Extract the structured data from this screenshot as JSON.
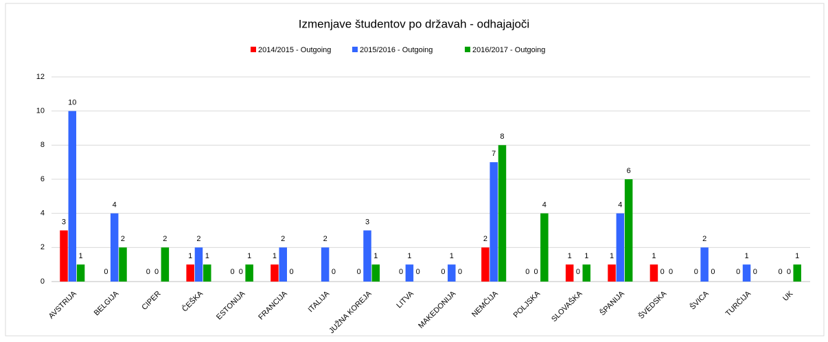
{
  "chart_data": {
    "type": "bar",
    "title": "Izmenjave študentov po državah - odhajajoči",
    "categories": [
      "AVSTRIJA",
      "BELGIJA",
      "CIPER",
      "ČEŠKA",
      "ESTONIJA",
      "FRANCIJA",
      "ITALIJA",
      "JUŽNA KOREJA",
      "LITVA",
      "MAKEDONIJA",
      "NEMČIJA",
      "POLJSKA",
      "SLOVAŠKA",
      "ŠPANIJA",
      "ŠVEDSKA",
      "ŠVICA",
      "TURČIJA",
      "UK"
    ],
    "series": [
      {
        "name": "2014/2015 - Outgoing",
        "color": "#ff0000",
        "values": [
          3,
          0,
          0,
          1,
          0,
          1,
          null,
          0,
          0,
          0,
          2,
          0,
          1,
          1,
          1,
          0,
          0,
          0
        ]
      },
      {
        "name": "2015/2016 - Outgoing",
        "color": "#3366ff",
        "values": [
          10,
          4,
          0,
          2,
          0,
          2,
          2,
          3,
          1,
          1,
          7,
          0,
          0,
          4,
          0,
          2,
          1,
          0
        ]
      },
      {
        "name": "2016/2017 - Outgoing",
        "color": "#00a000",
        "values": [
          1,
          2,
          2,
          1,
          1,
          0,
          0,
          1,
          0,
          0,
          8,
          4,
          1,
          6,
          0,
          0,
          0,
          1
        ]
      }
    ],
    "ylim": [
      0,
      12
    ],
    "yticks": [
      0,
      2,
      4,
      6,
      8,
      10,
      12
    ],
    "grid": true,
    "legend": "top"
  }
}
